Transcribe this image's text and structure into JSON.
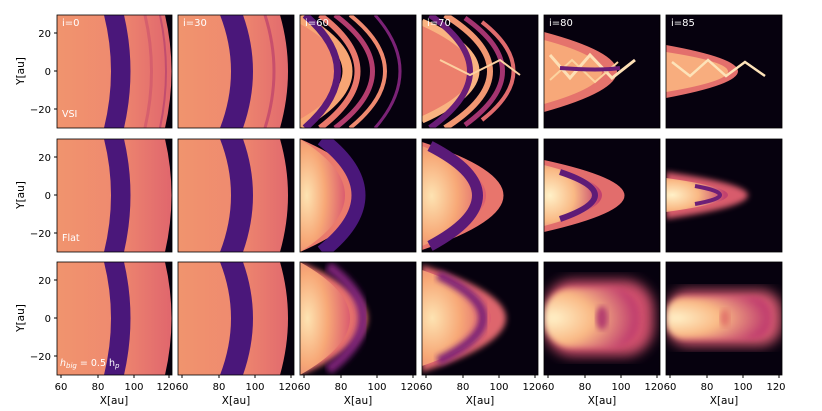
{
  "figure": {
    "inclinations": [
      "i=0",
      "i=30",
      "i=60",
      "i=70",
      "i=80",
      "i=85"
    ],
    "rows": [
      {
        "label": "VSI"
      },
      {
        "label": "Flat"
      },
      {
        "label_main": "h",
        "label_sub": "big",
        "label_mid": " = 0.5 h",
        "label_sub2": "p"
      }
    ],
    "y_axis_label": "Y[au]",
    "x_axis_label": "X[au]",
    "y_ticks": [
      "20",
      "0",
      "−20"
    ],
    "x_ticks": [
      "60",
      "80",
      "100",
      "120"
    ],
    "colors": {
      "dark": "#06010e",
      "gap": "#4a177a",
      "disk": "#e8776a",
      "bright": "#fbd8a8"
    }
  }
}
